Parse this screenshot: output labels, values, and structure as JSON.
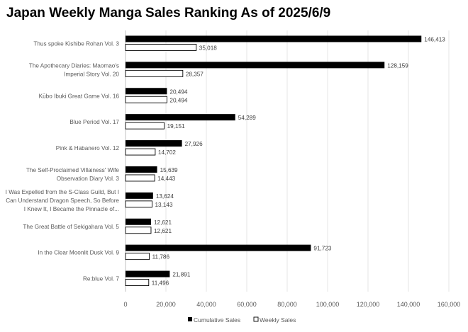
{
  "chart_data": {
    "type": "bar",
    "orientation": "horizontal",
    "title": "Japan Weekly Manga Sales Ranking As of 2025/6/9",
    "categories": [
      [
        "Thus spoke Kishibe Rohan Vol. 3"
      ],
      [
        "The Apothecary Diaries: Maomao's",
        "Imperial Story Vol. 20"
      ],
      [
        "Kūbo Ibuki Great Game Vol. 16"
      ],
      [
        "Blue Period Vol. 17"
      ],
      [
        "Pink & Habanero Vol. 12"
      ],
      [
        "The Self-Proclaimed Villainess' Wife",
        "Observation Diary Vol. 3"
      ],
      [
        "I Was Expelled from the S-Class Guild, But I",
        "Can Understand Dragon Speech, So Before",
        "I Knew It, I Became the Pinnacle of..."
      ],
      [
        "The Great Battle of Sekigahara Vol. 5"
      ],
      [
        "In the Clear Moonlit Dusk Vol. 9"
      ],
      [
        "Re:blue Vol. 7"
      ]
    ],
    "series": [
      {
        "name": "Cumulative Sales",
        "color": "#000000",
        "values": [
          146413,
          128159,
          20494,
          54289,
          27926,
          15639,
          13624,
          12621,
          91723,
          21891
        ]
      },
      {
        "name": "Weekly Sales",
        "color": "#ffffff",
        "values": [
          35018,
          28357,
          20494,
          19151,
          14702,
          14443,
          13143,
          12621,
          11786,
          11496
        ]
      }
    ],
    "xlim": [
      0,
      160000
    ],
    "xticks": [
      0,
      20000,
      40000,
      60000,
      80000,
      100000,
      120000,
      140000,
      160000
    ],
    "grid": true,
    "legend": "bottom",
    "data_labels": true
  }
}
